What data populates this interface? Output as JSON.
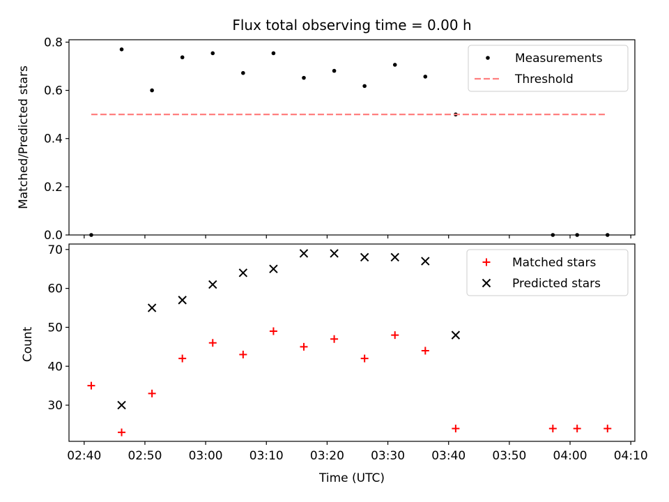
{
  "chart_data": [
    {
      "type": "scatter",
      "title": "Flux total observing time = 0.00 h",
      "xlabel": "",
      "ylabel": "Matched/Predicted stars",
      "xlim": [
        "02:37:30",
        "04:10:40"
      ],
      "ylim": [
        0,
        0.81
      ],
      "yticks": [
        0,
        0.2,
        0.4,
        0.6,
        0.8
      ],
      "ytick_labels": [
        "0.0",
        "0.2",
        "0.4",
        "0.6",
        "0.8"
      ],
      "grid": false,
      "legend": "top-right",
      "series": [
        {
          "name": "Measurements",
          "marker": "dot",
          "color": "#000000",
          "x": [
            "02:41:10",
            "02:46:10",
            "02:51:10",
            "02:56:10",
            "03:01:10",
            "03:06:10",
            "03:11:10",
            "03:16:10",
            "03:21:10",
            "03:26:10",
            "03:31:10",
            "03:36:10",
            "03:41:10",
            "03:57:10",
            "04:01:10",
            "04:06:10"
          ],
          "y": [
            0.0,
            0.77,
            0.6,
            0.737,
            0.754,
            0.672,
            0.754,
            0.652,
            0.681,
            0.618,
            0.706,
            0.657,
            0.5,
            0.0,
            0.0,
            0.0
          ]
        },
        {
          "name": "Threshold",
          "line_style": "dashed",
          "color": "#ff7f7f",
          "x": [
            "02:41:10",
            "04:06:10"
          ],
          "y": [
            0.5,
            0.5
          ]
        }
      ]
    },
    {
      "type": "scatter",
      "title": "",
      "xlabel": "Time (UTC)",
      "ylabel": "Count",
      "xlim": [
        "02:37:30",
        "04:10:40"
      ],
      "ylim": [
        20.7,
        71.4
      ],
      "yticks": [
        30,
        40,
        50,
        60,
        70
      ],
      "ytick_labels": [
        "30",
        "40",
        "50",
        "60",
        "70"
      ],
      "xticks": [
        "02:40",
        "02:50",
        "03:00",
        "03:10",
        "03:20",
        "03:30",
        "03:40",
        "03:50",
        "04:00",
        "04:10"
      ],
      "grid": false,
      "legend": "top-right",
      "series": [
        {
          "name": "Matched stars",
          "marker": "plus",
          "color": "#ff0000",
          "x": [
            "02:41:10",
            "02:46:10",
            "02:51:10",
            "02:56:10",
            "03:01:10",
            "03:06:10",
            "03:11:10",
            "03:16:10",
            "03:21:10",
            "03:26:10",
            "03:31:10",
            "03:36:10",
            "03:41:10",
            "03:57:10",
            "04:01:10",
            "04:06:10"
          ],
          "y": [
            35,
            23,
            33,
            42,
            46,
            43,
            49,
            45,
            47,
            42,
            48,
            44,
            24,
            24,
            24,
            24
          ]
        },
        {
          "name": "Predicted stars",
          "marker": "x",
          "color": "#000000",
          "x": [
            "02:46:10",
            "02:51:10",
            "02:56:10",
            "03:01:10",
            "03:06:10",
            "03:11:10",
            "03:16:10",
            "03:21:10",
            "03:26:10",
            "03:31:10",
            "03:36:10",
            "03:41:10"
          ],
          "y": [
            30,
            55,
            57,
            61,
            64,
            65,
            69,
            69,
            68,
            68,
            67,
            48
          ]
        }
      ]
    }
  ]
}
